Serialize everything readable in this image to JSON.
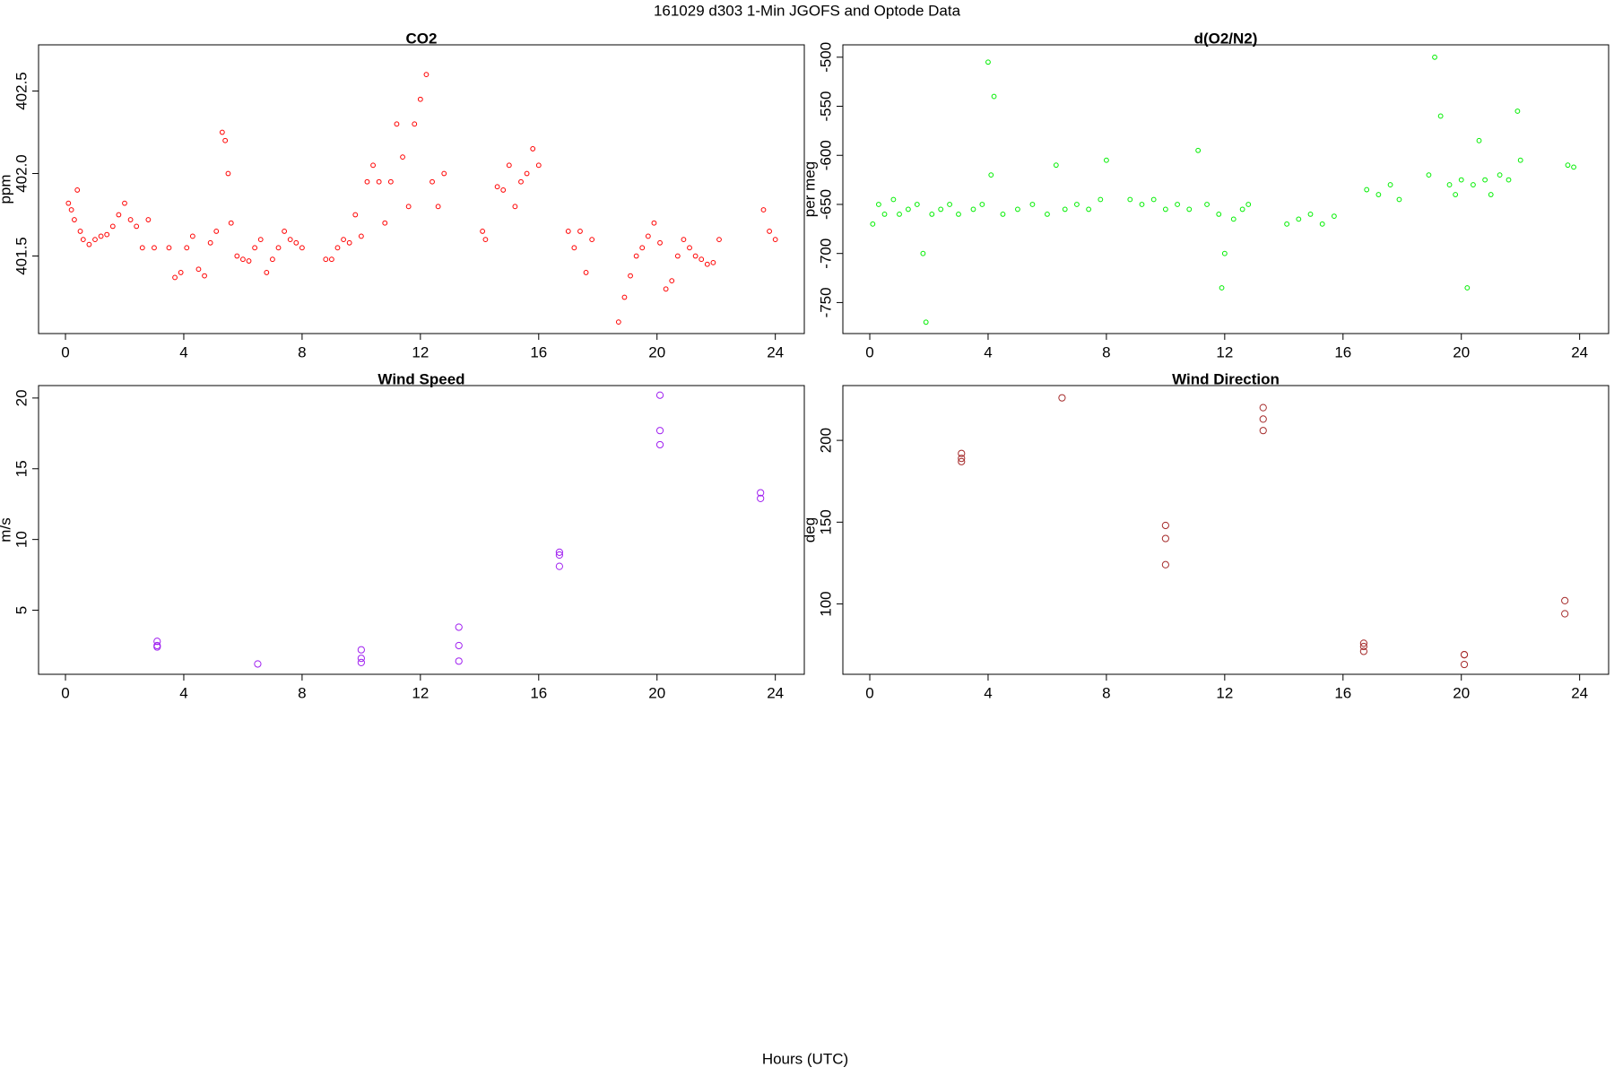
{
  "title": "161029   d303   1-Min  JGOFS and Optode Data",
  "xlabel": "Hours (UTC)",
  "chart_data": [
    {
      "type": "scatter",
      "title": "CO2",
      "ylabel": "ppm",
      "color": "#ff0000",
      "marker_size": 2.4,
      "xlim": [
        -0.91,
        24.98
      ],
      "xticks": [
        0,
        4,
        8,
        12,
        16,
        20,
        24
      ],
      "ylim": [
        401.03,
        402.78
      ],
      "yticks": [
        401.5,
        {
          "value": 402,
          "label": "402.0"
        },
        402.5
      ],
      "x": [
        0.1,
        0.2,
        0.3,
        0.4,
        0.5,
        0.6,
        0.8,
        1.0,
        1.2,
        1.4,
        1.6,
        1.8,
        2.0,
        2.2,
        2.4,
        2.6,
        2.8,
        3.0,
        3.5,
        3.7,
        3.9,
        4.1,
        4.3,
        4.5,
        4.7,
        4.9,
        5.1,
        5.3,
        5.4,
        5.5,
        5.6,
        5.8,
        6.0,
        6.2,
        6.4,
        6.6,
        6.8,
        7.0,
        7.2,
        7.4,
        7.6,
        7.8,
        8.0,
        8.8,
        9.0,
        9.2,
        9.4,
        9.6,
        9.8,
        10.0,
        10.2,
        10.4,
        10.6,
        10.8,
        11.0,
        11.2,
        11.4,
        11.6,
        11.8,
        12.0,
        12.2,
        12.4,
        12.6,
        12.8,
        14.1,
        14.2,
        14.6,
        14.8,
        15.0,
        15.2,
        15.4,
        15.6,
        15.8,
        16.0,
        17.0,
        17.2,
        17.4,
        17.6,
        17.8,
        18.7,
        18.9,
        19.1,
        19.3,
        19.5,
        19.7,
        19.9,
        20.1,
        20.3,
        20.5,
        20.7,
        20.9,
        21.1,
        21.3,
        21.5,
        21.7,
        21.9,
        22.1,
        23.6,
        23.8,
        24.0
      ],
      "values": [
        401.82,
        401.78,
        401.72,
        401.9,
        401.65,
        401.6,
        401.57,
        401.6,
        401.62,
        401.63,
        401.68,
        401.75,
        401.82,
        401.72,
        401.68,
        401.55,
        401.72,
        401.55,
        401.55,
        401.37,
        401.4,
        401.55,
        401.62,
        401.42,
        401.38,
        401.58,
        401.65,
        402.25,
        402.2,
        402.0,
        401.7,
        401.5,
        401.48,
        401.47,
        401.55,
        401.6,
        401.4,
        401.48,
        401.55,
        401.65,
        401.6,
        401.58,
        401.55,
        401.48,
        401.48,
        401.55,
        401.6,
        401.58,
        401.75,
        401.62,
        401.95,
        402.05,
        401.95,
        401.7,
        401.95,
        402.3,
        402.1,
        401.8,
        402.3,
        402.45,
        402.6,
        401.95,
        401.8,
        402.0,
        401.65,
        401.6,
        401.92,
        401.9,
        402.05,
        401.8,
        401.95,
        402.0,
        402.15,
        402.05,
        401.65,
        401.55,
        401.65,
        401.4,
        401.6,
        401.1,
        401.25,
        401.38,
        401.5,
        401.55,
        401.62,
        401.7,
        401.58,
        401.3,
        401.35,
        401.5,
        401.6,
        401.55,
        401.5,
        401.48,
        401.45,
        401.46,
        401.6,
        401.78,
        401.65,
        401.6
      ]
    },
    {
      "type": "scatter",
      "title": "d(O2/N2)",
      "ylabel": "per meg",
      "color": "#00ee00",
      "marker_size": 2.4,
      "xlim": [
        -0.91,
        24.98
      ],
      "xticks": [
        0,
        4,
        8,
        12,
        16,
        20,
        24
      ],
      "ylim": [
        -781.6,
        -487.4
      ],
      "yticks": [
        -750,
        -700,
        -650,
        -600,
        -550,
        -500
      ],
      "x": [
        0.1,
        0.3,
        0.5,
        0.8,
        1.0,
        1.3,
        1.6,
        1.8,
        1.9,
        2.1,
        2.4,
        2.7,
        3.0,
        3.5,
        3.8,
        4.0,
        4.1,
        4.2,
        4.5,
        5.0,
        5.5,
        6.0,
        6.3,
        6.6,
        7.0,
        7.4,
        7.8,
        8.0,
        8.8,
        9.2,
        9.6,
        10.0,
        10.4,
        10.8,
        11.1,
        11.4,
        11.8,
        11.9,
        12.0,
        12.3,
        12.6,
        12.8,
        14.1,
        14.5,
        14.9,
        15.3,
        15.7,
        16.8,
        17.2,
        17.6,
        17.9,
        18.9,
        19.1,
        19.3,
        19.6,
        19.8,
        20.0,
        20.2,
        20.4,
        20.6,
        20.8,
        21.0,
        21.3,
        21.6,
        21.9,
        22.0,
        23.6,
        23.8
      ],
      "values": [
        -670,
        -650,
        -660,
        -645,
        -660,
        -655,
        -650,
        -700,
        -770,
        -660,
        -655,
        -650,
        -660,
        -655,
        -650,
        -505,
        -620,
        -540,
        -660,
        -655,
        -650,
        -660,
        -610,
        -655,
        -650,
        -655,
        -645,
        -605,
        -645,
        -650,
        -645,
        -655,
        -650,
        -655,
        -595,
        -650,
        -660,
        -735,
        -700,
        -665,
        -655,
        -650,
        -670,
        -665,
        -660,
        -670,
        -662,
        -635,
        -640,
        -630,
        -645,
        -620,
        -500,
        -560,
        -630,
        -640,
        -625,
        -735,
        -630,
        -585,
        -625,
        -640,
        -620,
        -625,
        -555,
        -605,
        -610,
        -612
      ]
    },
    {
      "type": "scatter",
      "title": "Wind Speed",
      "ylabel": "m/s",
      "color": "#a020f0",
      "marker_size": 3.6,
      "xlim": [
        -0.91,
        24.98
      ],
      "xticks": [
        0,
        4,
        8,
        12,
        16,
        20,
        24
      ],
      "ylim": [
        0.47,
        20.88
      ],
      "yticks": [
        5,
        10,
        15,
        20
      ],
      "x": [
        3.1,
        3.1,
        3.1,
        6.5,
        10,
        10,
        10,
        13.3,
        13.3,
        13.3,
        16.7,
        16.7,
        16.7,
        20.1,
        20.1,
        20.1,
        23.5,
        23.5
      ],
      "values": [
        2.8,
        2.5,
        2.4,
        1.2,
        2.2,
        1.6,
        1.3,
        3.8,
        2.5,
        1.4,
        9.1,
        8.9,
        8.1,
        20.2,
        17.7,
        16.7,
        13.3,
        12.9
      ]
    },
    {
      "type": "scatter",
      "title": "Wind Direction",
      "ylabel": "deg",
      "color": "#a52a2a",
      "marker_size": 3.6,
      "xlim": [
        -0.91,
        24.98
      ],
      "xticks": [
        0,
        4,
        8,
        12,
        16,
        20,
        24
      ],
      "ylim": [
        57,
        233.5
      ],
      "yticks": [
        100,
        150,
        200
      ],
      "x": [
        3.1,
        3.1,
        3.1,
        6.5,
        10,
        10,
        10,
        13.3,
        13.3,
        13.3,
        16.7,
        16.7,
        16.7,
        20.1,
        20.1,
        20.1,
        23.5,
        23.5
      ],
      "values": [
        192,
        189,
        187,
        226,
        148,
        140,
        124,
        220,
        213,
        206,
        76,
        74,
        71,
        69,
        69,
        63,
        102,
        94
      ]
    }
  ]
}
